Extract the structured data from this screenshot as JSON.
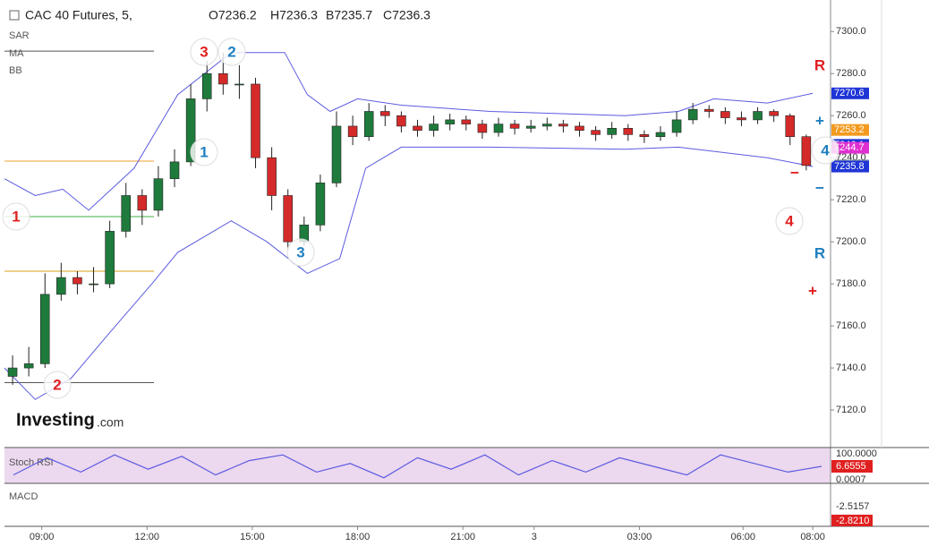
{
  "chart_data": {
    "type": "candlestick",
    "title": "CAC 40 Futures, 5,",
    "ohlc_header": [
      "O7236.2",
      "H7236.3",
      "B7235.7",
      "C7236.3"
    ],
    "indicators": [
      "SAR",
      "MA",
      "BB"
    ],
    "logo": [
      "Investing",
      ".com"
    ],
    "open": [
      7136,
      7140,
      7142,
      7175,
      7183,
      7180,
      7180,
      7205,
      7222,
      7215,
      7230,
      7238,
      7268,
      7280,
      7275,
      7275,
      7240,
      7222,
      7200,
      7208,
      7228,
      7255,
      7250,
      7262,
      7260,
      7255,
      7253,
      7256,
      7258,
      7256,
      7252,
      7256,
      7254,
      7255,
      7256,
      7255,
      7253,
      7251,
      7254,
      7251,
      7250,
      7252,
      7258,
      7263,
      7262,
      7259,
      7258,
      7262,
      7260,
      7250
    ],
    "high": [
      7146,
      7150,
      7185,
      7190,
      7186,
      7188,
      7210,
      7228,
      7225,
      7236,
      7244,
      7275,
      7286,
      7290,
      7284,
      7278,
      7245,
      7225,
      7212,
      7232,
      7262,
      7260,
      7266,
      7265,
      7262,
      7258,
      7260,
      7261,
      7260,
      7258,
      7259,
      7258,
      7258,
      7259,
      7258,
      7257,
      7255,
      7257,
      7256,
      7253,
      7255,
      7262,
      7266,
      7265,
      7264,
      7262,
      7264,
      7263,
      7261,
      7251
    ],
    "low": [
      7132,
      7136,
      7140,
      7172,
      7175,
      7176,
      7178,
      7202,
      7208,
      7212,
      7226,
      7236,
      7262,
      7270,
      7268,
      7235,
      7215,
      7196,
      7198,
      7205,
      7226,
      7246,
      7248,
      7255,
      7252,
      7250,
      7250,
      7253,
      7253,
      7249,
      7250,
      7251,
      7252,
      7253,
      7252,
      7250,
      7248,
      7249,
      7248,
      7247,
      7248,
      7250,
      7256,
      7259,
      7256,
      7255,
      7256,
      7257,
      7246,
      7234
    ],
    "close": [
      7140,
      7142,
      7175,
      7183,
      7180,
      7180,
      7205,
      7222,
      7215,
      7230,
      7238,
      7268,
      7280,
      7275,
      7275,
      7240,
      7222,
      7200,
      7208,
      7228,
      7255,
      7250,
      7262,
      7260,
      7255,
      7253,
      7256,
      7258,
      7256,
      7252,
      7256,
      7254,
      7255,
      7256,
      7255,
      7253,
      7251,
      7254,
      7251,
      7250,
      7252,
      7258,
      7263,
      7262,
      7259,
      7258,
      7262,
      7260,
      7250,
      7236.3
    ],
    "up_color": "#1e7b3c",
    "down_color": "#d42a2a",
    "bands": [
      {
        "color": "#5b5be0",
        "x": [
          -0.5,
          1.4,
          3.1,
          4.7,
          7.5,
          10.2,
          13.5,
          16.8,
          18.2,
          19.6,
          21.3,
          24,
          29.5,
          37.8,
          41.1,
          43.3,
          46.6,
          49.4
        ],
        "values": [
          7230,
          7222,
          7225,
          7215,
          7235,
          7270,
          7290,
          7290,
          7270,
          7262,
          7268,
          7265,
          7262,
          7260,
          7262,
          7268,
          7266,
          7270.6
        ]
      },
      {
        "color": "#5b5be0",
        "x": [
          -0.5,
          1.4,
          3.6,
          5.8,
          8.6,
          10.2,
          13.5,
          15.7,
          18.2,
          20.2,
          21.8,
          24,
          29.5,
          37.8,
          41.1,
          46.6,
          49.4
        ],
        "values": [
          7140,
          7125,
          7135,
          7155,
          7180,
          7195,
          7210,
          7200,
          7185,
          7192,
          7235,
          7245,
          7245,
          7244,
          7245,
          7240,
          7235.8
        ]
      }
    ],
    "levels": [
      {
        "value": 7290.7,
        "color": "#555555"
      },
      {
        "value": 7238.4,
        "color": "#f0a030"
      },
      {
        "value": 7212,
        "color": "#3cb043"
      },
      {
        "value": 7186,
        "color": "#d4a017"
      },
      {
        "value": 7133,
        "color": "#555555"
      }
    ],
    "price_labels": [
      {
        "value": 7270.6,
        "color": "#1f35d6"
      },
      {
        "value": 7253.2,
        "color": "#f39a1e"
      },
      {
        "value": 7246.1,
        "color": "#1f35d6"
      },
      {
        "value": 7244.7,
        "color": "#e02fd0"
      },
      {
        "value": 7236.3,
        "color": "#8a99a8"
      },
      {
        "value": 7235.8,
        "color": "#1f35d6"
      }
    ],
    "wave_labels": [
      {
        "text": "1",
        "color": "#e02020"
      },
      {
        "text": "2",
        "color": "#e02020"
      },
      {
        "text": "3",
        "color": "#e02020"
      },
      {
        "text": "2",
        "color": "#1f7fc0"
      },
      {
        "text": "1",
        "color": "#1f7fc0"
      },
      {
        "text": "3",
        "color": "#1f7fc0"
      },
      {
        "text": "4",
        "color": "#1f7fc0"
      },
      {
        "text": "4",
        "color": "#e02020"
      },
      {
        "text": "R",
        "color": "#e02020"
      },
      {
        "text": "R",
        "color": "#1f7fc0"
      },
      {
        "text": "+",
        "color": "#1f7fc0"
      },
      {
        "text": "−",
        "color": "#1f7fc0"
      },
      {
        "text": "−",
        "color": "#e02020"
      },
      {
        "text": "+",
        "color": "#e02020"
      }
    ],
    "xlim": [
      -0.5,
      50.5
    ],
    "xticks": [
      {
        "value": 1.8,
        "label": "09:00"
      },
      {
        "value": 8.3,
        "label": "12:00"
      },
      {
        "value": 14.8,
        "label": "15:00"
      },
      {
        "value": 21.3,
        "label": "18:00"
      },
      {
        "value": 27.8,
        "label": "21:00"
      },
      {
        "value": 32.2,
        "label": "3"
      },
      {
        "value": 38.7,
        "label": "03:00"
      },
      {
        "value": 45.1,
        "label": "06:00"
      },
      {
        "value": 49.4,
        "label": "08:00"
      }
    ],
    "ylim": [
      7103,
      7315
    ],
    "yticks": [
      {
        "value": 7120,
        "label": "7120.0"
      },
      {
        "value": 7140,
        "label": "7140.0"
      },
      {
        "value": 7160,
        "label": "7160.0"
      },
      {
        "value": 7180,
        "label": "7180.0"
      },
      {
        "value": 7200,
        "label": "7200.0"
      },
      {
        "value": 7220,
        "label": "7220.0"
      },
      {
        "value": 7240,
        "label": "7240.0"
      },
      {
        "value": 7260,
        "label": "7260.0"
      },
      {
        "value": 7280,
        "label": "7280.0"
      },
      {
        "value": 7300,
        "label": "7300.0"
      }
    ],
    "stoch": {
      "name": "Stoch RSI",
      "ylim": [
        0,
        100
      ],
      "labels": [
        "100.0000",
        "6.6555",
        "0.0007"
      ],
      "color": "#5b5be0",
      "values": [
        20,
        80,
        30,
        90,
        40,
        85,
        20,
        70,
        90,
        30,
        60,
        10,
        80,
        40,
        90,
        20,
        70,
        30,
        80,
        50,
        20,
        90,
        60,
        30,
        50
      ]
    },
    "macd": {
      "name": "MACD",
      "labels": [
        "-2.5157",
        "-2.8210"
      ]
    }
  }
}
